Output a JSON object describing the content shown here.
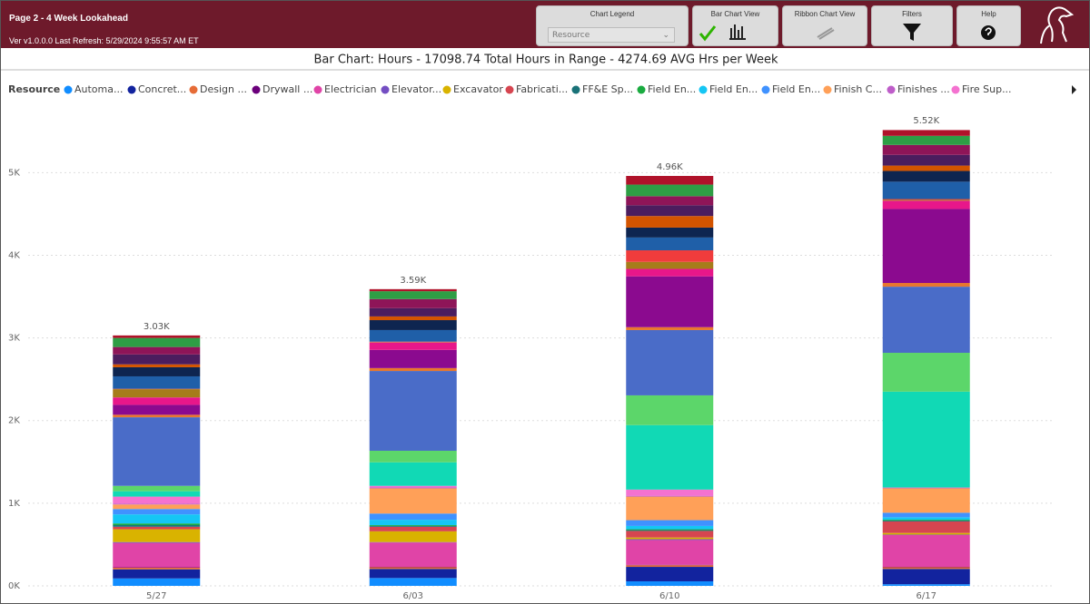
{
  "header": {
    "page_title": "Page 2 - 4 Week Lookahead",
    "version": "Ver v1.0.0.0 Last Refresh: 5/29/2024 9:55:57 AM ET",
    "buttons": {
      "chart_legend": "Chart Legend",
      "chart_legend_value": "Resource",
      "bar_chart_view": "Bar Chart View",
      "ribbon_chart_view": "Ribbon Chart View",
      "filters": "Filters",
      "help": "Help"
    }
  },
  "chart_data": {
    "type": "stacked_bar",
    "title": "Bar Chart: Hours - 17098.74 Total Hours in Range - 4274.69 AVG Hrs per Week",
    "legend_title": "Resource",
    "categories": [
      "5/27",
      "6/03",
      "6/10",
      "6/17"
    ],
    "ylim": [
      0,
      5750
    ],
    "yticks": [
      {
        "value": 0,
        "label": "0K"
      },
      {
        "value": 1000,
        "label": "1K"
      },
      {
        "value": 2000,
        "label": "2K"
      },
      {
        "value": 3000,
        "label": "3K"
      },
      {
        "value": 4000,
        "label": "4K"
      },
      {
        "value": 5000,
        "label": "5K"
      }
    ],
    "grid": true,
    "totals": {
      "values": [
        3030,
        3590,
        4960,
        5520
      ],
      "value_labels": [
        "3.03K",
        "3.59K",
        "4.96K",
        "5.52K"
      ]
    },
    "series": [
      {
        "name": "Automa...",
        "color": "#118DFF",
        "values": [
          90,
          95,
          55,
          20
        ]
      },
      {
        "name": "Concret...",
        "color": "#12239E",
        "values": [
          110,
          110,
          175,
          185
        ]
      },
      {
        "name": "Design ...",
        "color": "#E66C37",
        "values": [
          20,
          20,
          20,
          20
        ]
      },
      {
        "name": "Drywall ...",
        "color": "#6B007B",
        "values": [
          5,
          5,
          5,
          5
        ]
      },
      {
        "name": "Electrician",
        "color": "#E044A7",
        "values": [
          295,
          295,
          300,
          385
        ]
      },
      {
        "name": "Elevator...",
        "color": "#744EC2",
        "values": [
          10,
          5,
          10,
          5
        ]
      },
      {
        "name": "Excavator",
        "color": "#D9B300",
        "values": [
          155,
          130,
          20,
          20
        ]
      },
      {
        "name": "Fabricati...",
        "color": "#D64550",
        "values": [
          30,
          55,
          80,
          140
        ]
      },
      {
        "name": "FF&E Sp...",
        "color": "#197278",
        "values": [
          20,
          10,
          10,
          10
        ]
      },
      {
        "name": "Field En...",
        "color": "#1AAB40",
        "values": [
          20,
          10,
          10,
          10
        ]
      },
      {
        "name": "Field En...",
        "color": "#15C6F4",
        "values": [
          110,
          65,
          40,
          30
        ]
      },
      {
        "name": "Field En...",
        "color": "#4092FF",
        "values": [
          65,
          75,
          70,
          55
        ]
      },
      {
        "name": "Finish C...",
        "color": "#FFA058",
        "values": [
          55,
          305,
          285,
          295
        ]
      },
      {
        "name": "Finishes ...",
        "color": "#BE5DC9",
        "values": [
          10,
          10,
          10,
          5
        ]
      },
      {
        "name": "Fire Sup...",
        "color": "#F472D0",
        "values": [
          85,
          20,
          75,
          5
        ]
      },
      {
        "name": null,
        "color": "#11D9B5",
        "values": [
          65,
          285,
          780,
          1160
        ]
      },
      {
        "name": null,
        "color": "#5CD66A",
        "values": [
          65,
          140,
          360,
          470
        ]
      },
      {
        "name": null,
        "color": "#4A6CC8",
        "values": [
          830,
          965,
          790,
          800
        ]
      },
      {
        "name": null,
        "color": "#E8772E",
        "values": [
          30,
          35,
          35,
          45
        ]
      },
      {
        "name": null,
        "color": "#8B0A8F",
        "values": [
          120,
          220,
          615,
          895
        ]
      },
      {
        "name": null,
        "color": "#E8178A",
        "values": [
          90,
          90,
          90,
          100
        ]
      },
      {
        "name": null,
        "color": "#A67C1A",
        "values": [
          100,
          5,
          85,
          10
        ]
      },
      {
        "name": null,
        "color": "#F03C3C",
        "values": [
          5,
          5,
          140,
          10
        ]
      },
      {
        "name": null,
        "color": "#1F5FA8",
        "values": [
          150,
          140,
          155,
          210
        ]
      },
      {
        "name": null,
        "color": "#0E2550",
        "values": [
          110,
          120,
          120,
          130
        ]
      },
      {
        "name": null,
        "color": "#D35400",
        "values": [
          35,
          45,
          140,
          65
        ]
      },
      {
        "name": null,
        "color": "#4B1D5E",
        "values": [
          120,
          100,
          130,
          130
        ]
      },
      {
        "name": null,
        "color": "#8E1558",
        "values": [
          90,
          110,
          110,
          120
        ]
      },
      {
        "name": null,
        "color": "#2E9E45",
        "values": [
          110,
          95,
          140,
          110
        ]
      },
      {
        "name": null,
        "color": "#B0122A",
        "values": [
          30,
          25,
          105,
          70
        ]
      }
    ]
  }
}
